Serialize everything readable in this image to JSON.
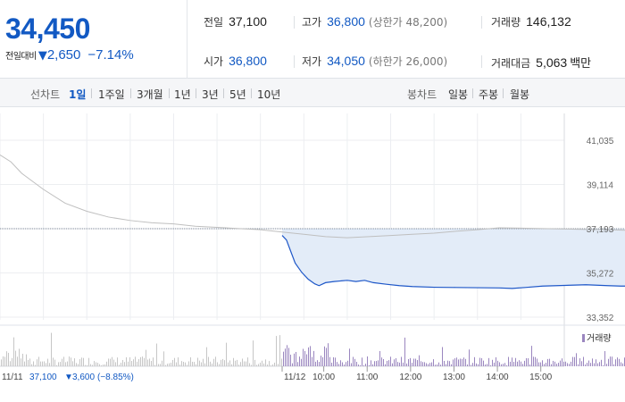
{
  "quote": {
    "price": "34,450",
    "change_label": "전일대비",
    "change_arrow": "▼",
    "change_value": "2,650",
    "change_pct": "−7.14%"
  },
  "stats": {
    "prev_close": {
      "label": "전일",
      "value": "37,100"
    },
    "open": {
      "label": "시가",
      "value": "36,800"
    },
    "high": {
      "label": "고가",
      "value": "36,800",
      "limit": "(상한가 48,200)"
    },
    "low": {
      "label": "저가",
      "value": "34,050",
      "limit": "(하한가 26,000)"
    },
    "volume": {
      "label": "거래량",
      "value": "146,132"
    },
    "amount": {
      "label": "거래대금",
      "value": "5,063",
      "unit": "백만"
    }
  },
  "periods": {
    "line_label": "선차트",
    "line_tabs": [
      "1일",
      "1주일",
      "3개월",
      "1년",
      "3년",
      "5년",
      "10년"
    ],
    "active": "1일",
    "candle_label": "봉차트",
    "candle_tabs": [
      "일봉",
      "주봉",
      "월봉"
    ]
  },
  "colors": {
    "accent": "#1259c3",
    "prev_line": "#bfbfbf",
    "today_line": "#1e57c8",
    "fill": "#e3ecf8",
    "volume_prev": "#c6c6c6",
    "volume_today": "#9a86bf"
  },
  "chart_data": {
    "type": "line",
    "y_ticks": [
      "41,035",
      "39,114",
      "37,193",
      "35,272",
      "33,352"
    ],
    "ylim": [
      33352,
      41035
    ],
    "baseline": 37193,
    "prev_session": {
      "date": "11/11",
      "summary_close": "37,100",
      "summary_arrow": "▼",
      "summary_change": "3,600",
      "summary_pct": "(−8.85%)",
      "points": [
        [
          0,
          40400
        ],
        [
          0.25,
          40100
        ],
        [
          0.5,
          39600
        ],
        [
          1,
          38900
        ],
        [
          1.5,
          38300
        ],
        [
          2,
          37950
        ],
        [
          2.5,
          37700
        ],
        [
          3,
          37550
        ],
        [
          3.5,
          37450
        ],
        [
          4,
          37400
        ],
        [
          4.5,
          37300
        ],
        [
          5,
          37250
        ],
        [
          5.5,
          37200
        ],
        [
          6,
          37150
        ],
        [
          6.5,
          37050
        ],
        [
          7,
          36950
        ],
        [
          7.5,
          36850
        ],
        [
          8,
          36800
        ],
        [
          8.5,
          36850
        ],
        [
          9,
          36900
        ],
        [
          9.5,
          36950
        ],
        [
          10,
          37000
        ],
        [
          10.5,
          37080
        ],
        [
          11,
          37150
        ],
        [
          11.5,
          37230
        ],
        [
          12,
          37220
        ],
        [
          12.5,
          37200
        ],
        [
          13,
          37180
        ],
        [
          13.5,
          37160
        ],
        [
          14,
          37150
        ],
        [
          14.5,
          37120
        ],
        [
          15,
          37100
        ]
      ]
    },
    "today_session": {
      "date": "11/12",
      "x_labels": [
        "10:00",
        "11:00",
        "12:00",
        "13:00",
        "14:00",
        "15:00"
      ],
      "points": [
        [
          0,
          36900
        ],
        [
          0.1,
          36700
        ],
        [
          0.2,
          36200
        ],
        [
          0.3,
          35700
        ],
        [
          0.45,
          35300
        ],
        [
          0.6,
          35000
        ],
        [
          0.75,
          34800
        ],
        [
          0.85,
          34720
        ],
        [
          1.0,
          34850
        ],
        [
          1.2,
          34900
        ],
        [
          1.5,
          34950
        ],
        [
          1.7,
          34900
        ],
        [
          1.9,
          34950
        ],
        [
          2.1,
          34850
        ],
        [
          2.4,
          34780
        ],
        [
          2.7,
          34720
        ],
        [
          3.0,
          34680
        ],
        [
          3.5,
          34650
        ],
        [
          4.0,
          34640
        ],
        [
          4.5,
          34630
        ],
        [
          5.0,
          34620
        ],
        [
          5.3,
          34600
        ],
        [
          5.6,
          34640
        ],
        [
          6.0,
          34700
        ],
        [
          6.5,
          34730
        ],
        [
          7.0,
          34760
        ],
        [
          7.5,
          34720
        ],
        [
          7.8,
          34700
        ],
        [
          8.0,
          34700
        ],
        [
          8.3,
          34720
        ],
        [
          8.5,
          34780
        ]
      ]
    },
    "volume_legend": "거래량"
  }
}
